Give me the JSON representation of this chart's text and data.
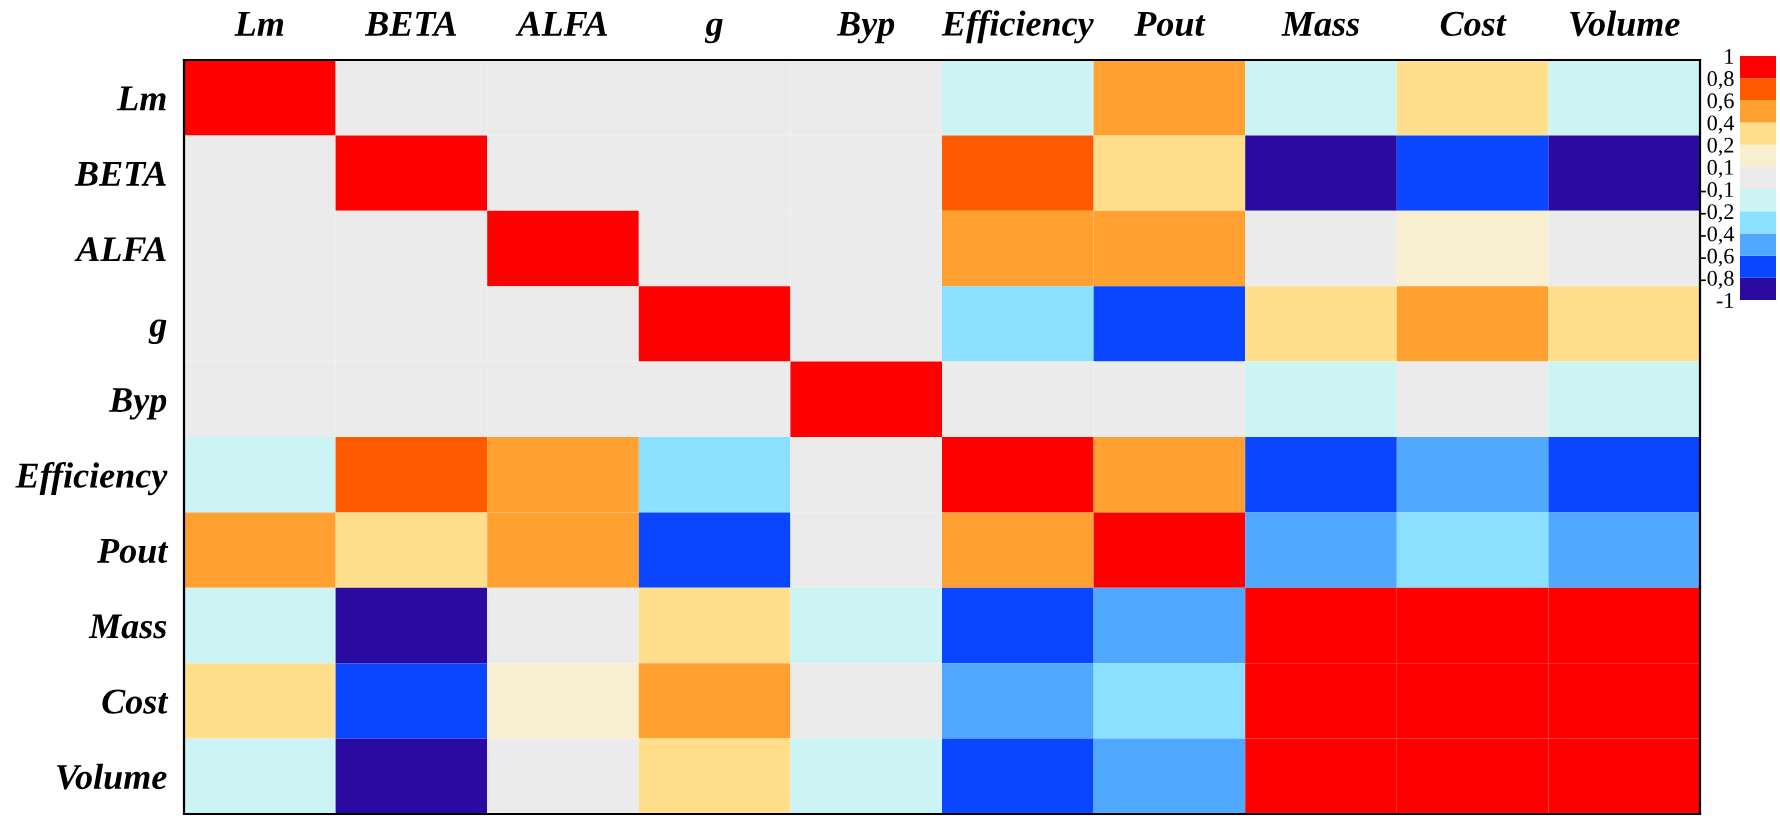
{
  "chart_data": {
    "type": "heatmap",
    "categories": [
      "Lm",
      "BETA",
      "ALFA",
      "g",
      "Byp",
      "Efficiency",
      "Pout",
      "Mass",
      "Cost",
      "Volume"
    ],
    "y_categories": [
      "Lm",
      "BETA",
      "ALFA",
      "g",
      "Byp",
      "Efficiency",
      "Pout",
      "Mass",
      "Cost",
      "Volume"
    ],
    "cells": [
      [
        1,
        0,
        0,
        0,
        0,
        -0.15,
        0.5,
        -0.15,
        0.3,
        -0.15
      ],
      [
        0,
        1,
        0,
        0,
        0,
        0.7,
        0.3,
        -0.9,
        -0.7,
        -0.9
      ],
      [
        0,
        0,
        1,
        0,
        0,
        0.5,
        0.5,
        0,
        0.15,
        0
      ],
      [
        0,
        0,
        0,
        1,
        0,
        -0.3,
        -0.7,
        0.3,
        0.5,
        0.3
      ],
      [
        0,
        0,
        0,
        0,
        1,
        0,
        0,
        -0.15,
        0,
        -0.15
      ],
      [
        -0.15,
        0.7,
        0.5,
        -0.3,
        0,
        1,
        0.5,
        -0.7,
        -0.5,
        -0.7
      ],
      [
        0.5,
        0.3,
        0.5,
        -0.7,
        0,
        0.5,
        1,
        -0.5,
        -0.3,
        -0.5
      ],
      [
        -0.15,
        -0.9,
        0,
        0.3,
        -0.15,
        -0.7,
        -0.5,
        1,
        0.9,
        0.9
      ],
      [
        0.3,
        -0.7,
        0.15,
        0.5,
        0,
        -0.5,
        -0.3,
        0.9,
        1,
        0.9
      ],
      [
        -0.15,
        -0.9,
        0,
        0.3,
        -0.15,
        -0.7,
        -0.5,
        0.9,
        0.9,
        1
      ]
    ],
    "cticks": [
      {
        "value": -1,
        "label": "-1"
      },
      {
        "value": -0.8,
        "label": "-0,8"
      },
      {
        "value": -0.6,
        "label": "-0,6"
      },
      {
        "value": -0.4,
        "label": "-0,4"
      },
      {
        "value": -0.2,
        "label": "-0,2"
      },
      {
        "value": -0.1,
        "label": "-0,1"
      },
      {
        "value": 0.1,
        "label": "0,1"
      },
      {
        "value": 0.2,
        "label": "0,2"
      },
      {
        "value": 0.4,
        "label": "0,4"
      },
      {
        "value": 0.6,
        "label": "0,6"
      },
      {
        "value": 0.8,
        "label": "0,8"
      },
      {
        "value": 1,
        "label": "1"
      }
    ],
    "colors": [
      "#2a0aa0",
      "#0a46ff",
      "#50a8ff",
      "#8ce0ff",
      "#ccf4f4",
      "#ebebeb",
      "#f8efd0",
      "#ffdf8c",
      "#ffa030",
      "#ff5a00",
      "#ff0000"
    ]
  }
}
